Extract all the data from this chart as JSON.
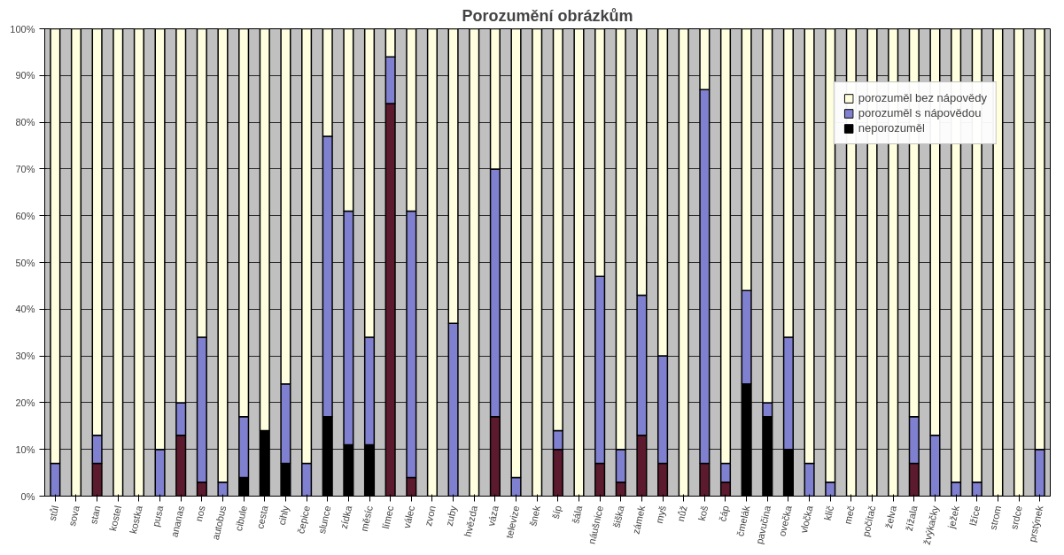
{
  "chart_data": {
    "type": "bar",
    "title": "Porozumění obrázkům",
    "stacked": true,
    "categories": [
      "stůl",
      "sova",
      "stan",
      "kostel",
      "kostka",
      "pusa",
      "ananas",
      "nos",
      "autobus",
      "cibule",
      "cesta",
      "cihly",
      "čepice",
      "slunce",
      "zídka",
      "měsíc",
      "límec",
      "válec",
      "zvon",
      "zuby",
      "hvězda",
      "váza",
      "televize",
      "šnek",
      "šíp",
      "šála",
      "náušnice",
      "šiška",
      "zámek",
      "myš",
      "nůž",
      "koš",
      "čáp",
      "čmelák",
      "pavučina",
      "ovečka",
      "vločka",
      "klíč",
      "meč",
      "počítač",
      "želva",
      "žížala",
      "žvýkačky",
      "ježek",
      "lžíce",
      "strom",
      "srdce",
      "prstýnek"
    ],
    "series": [
      {
        "name": "neporozuměl",
        "color": "#000000",
        "colors": [
          "#5c1a2e",
          "#5c1a2e",
          "#5c1a2e",
          "#5c1a2e",
          "#5c1a2e",
          "#5c1a2e",
          "#5c1a2e",
          "#5c1a2e",
          "#5c1a2e",
          "#000000",
          "#000000",
          "#000000",
          "#5c1a2e",
          "#000000",
          "#000000",
          "#000000",
          "#5c1a2e",
          "#5c1a2e",
          "#5c1a2e",
          "#5c1a2e",
          "#5c1a2e",
          "#5c1a2e",
          "#5c1a2e",
          "#5c1a2e",
          "#5c1a2e",
          "#5c1a2e",
          "#5c1a2e",
          "#5c1a2e",
          "#5c1a2e",
          "#5c1a2e",
          "#5c1a2e",
          "#5c1a2e",
          "#5c1a2e",
          "#000000",
          "#000000",
          "#000000",
          "#5c1a2e",
          "#5c1a2e",
          "#5c1a2e",
          "#5c1a2e",
          "#5c1a2e",
          "#5c1a2e",
          "#5c1a2e",
          "#5c1a2e",
          "#5c1a2e",
          "#5c1a2e",
          "#5c1a2e",
          "#5c1a2e"
        ],
        "values": [
          0,
          0,
          7,
          0,
          0,
          0,
          13,
          3,
          0,
          4,
          14,
          7,
          0,
          17,
          11,
          11,
          84,
          4,
          0,
          0,
          0,
          17,
          0,
          0,
          10,
          0,
          7,
          3,
          13,
          7,
          0,
          7,
          3,
          24,
          17,
          10,
          0,
          0,
          0,
          0,
          0,
          7,
          0,
          0,
          0,
          0,
          0,
          0
        ]
      },
      {
        "name": "porozuměl s nápovědou",
        "color": "#8080d0",
        "values": [
          7,
          0,
          6,
          0,
          0,
          10,
          7,
          31,
          3,
          13,
          0,
          17,
          7,
          60,
          50,
          23,
          10,
          57,
          0,
          37,
          0,
          53,
          4,
          0,
          4,
          0,
          40,
          7,
          30,
          23,
          0,
          80,
          4,
          20,
          3,
          24,
          7,
          3,
          0,
          0,
          0,
          10,
          13,
          3,
          3,
          0,
          0,
          10
        ]
      },
      {
        "name": "porozuměl bez nápovědy",
        "color": "#ffffe0",
        "values": [
          93,
          100,
          87,
          100,
          100,
          90,
          80,
          66,
          97,
          83,
          86,
          76,
          93,
          23,
          39,
          66,
          6,
          39,
          100,
          63,
          100,
          30,
          96,
          100,
          86,
          100,
          53,
          90,
          57,
          70,
          100,
          13,
          93,
          56,
          80,
          66,
          93,
          97,
          100,
          100,
          100,
          83,
          87,
          97,
          97,
          100,
          100,
          90
        ]
      }
    ],
    "ylim": [
      0,
      100
    ],
    "yticks": [
      {
        "value": 0,
        "label": "0%"
      },
      {
        "value": 10,
        "label": "10%"
      },
      {
        "value": 20,
        "label": "20%"
      },
      {
        "value": 30,
        "label": "30%"
      },
      {
        "value": 40,
        "label": "40%"
      },
      {
        "value": 50,
        "label": "50%"
      },
      {
        "value": 60,
        "label": "60%"
      },
      {
        "value": 70,
        "label": "70%"
      },
      {
        "value": 80,
        "label": "80%"
      },
      {
        "value": 90,
        "label": "90%"
      },
      {
        "value": 100,
        "label": "100%"
      }
    ],
    "grid": "y",
    "legend": "top right"
  }
}
